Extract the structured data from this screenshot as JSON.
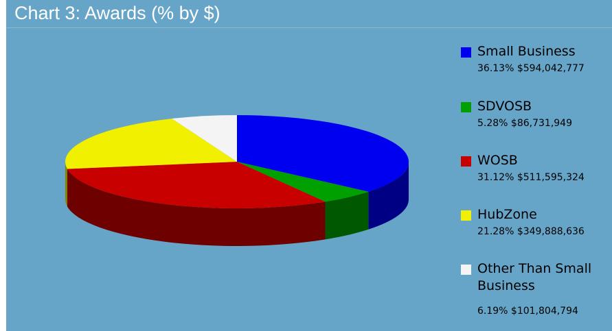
{
  "colors": {
    "background": "#67a5c8",
    "title_text": "#ffffff"
  },
  "chart_data": {
    "type": "pie",
    "title": "Chart 3: Awards (% by $)",
    "legend_position": "right",
    "slices": [
      {
        "name": "Small Business",
        "percent": 36.13,
        "percent_label": "36.13%",
        "amount": "$594,042,777",
        "color": "#0000f0"
      },
      {
        "name": "SDVOSB",
        "percent": 5.28,
        "percent_label": "5.28%",
        "amount": "$86,731,949",
        "color": "#00a000"
      },
      {
        "name": "WOSB",
        "percent": 31.12,
        "percent_label": "31.12%",
        "amount": "$511,595,324",
        "color": "#c80000"
      },
      {
        "name": "HubZone",
        "percent": 21.28,
        "percent_label": "21.28%",
        "amount": "$349,888,636",
        "color": "#f0f000"
      },
      {
        "name": "Other Than Small Business",
        "percent": 6.19,
        "percent_label": "6.19%",
        "amount": "$101,804,794",
        "color": "#f4f4f4"
      }
    ]
  }
}
